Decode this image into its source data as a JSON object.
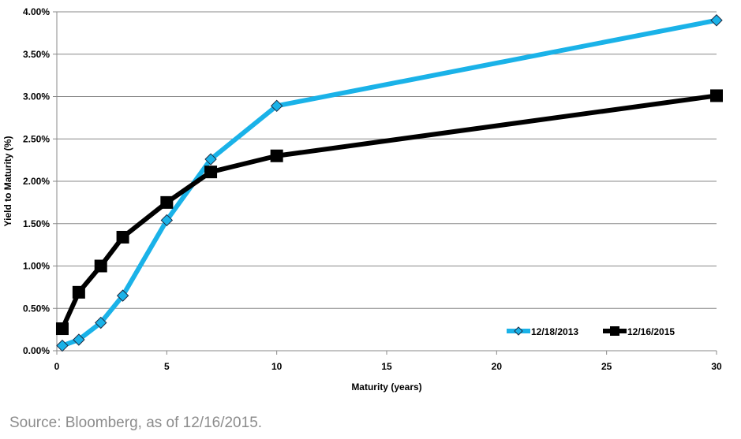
{
  "chart_data": {
    "type": "line",
    "title": "",
    "xlabel": "Maturity (years)",
    "ylabel": "Yield to Maturity (%)",
    "xlim": [
      0,
      30
    ],
    "ylim": [
      0,
      4.0
    ],
    "x_ticks": [
      "0",
      "5",
      "10",
      "15",
      "20",
      "25",
      "30"
    ],
    "y_ticks": [
      "0.00%",
      "0.50%",
      "1.00%",
      "1.50%",
      "2.00%",
      "2.50%",
      "3.00%",
      "3.50%",
      "4.00%"
    ],
    "grid": "horizontal",
    "legend_position": "bottom-right",
    "series": [
      {
        "name": "12/18/2013",
        "color": "#1ab2e8",
        "marker": "diamond",
        "x": [
          0.25,
          1,
          2,
          3,
          5,
          7,
          10,
          30
        ],
        "y": [
          0.06,
          0.13,
          0.33,
          0.65,
          1.54,
          2.26,
          2.89,
          3.9
        ]
      },
      {
        "name": "12/16/2015",
        "color": "#000000",
        "marker": "square",
        "x": [
          0.25,
          1,
          2,
          3,
          5,
          7,
          10,
          30
        ],
        "y": [
          0.26,
          0.69,
          1.0,
          1.34,
          1.75,
          2.11,
          2.3,
          3.01
        ]
      }
    ]
  },
  "source_note": "Source: Bloomberg, as of 12/16/2015."
}
